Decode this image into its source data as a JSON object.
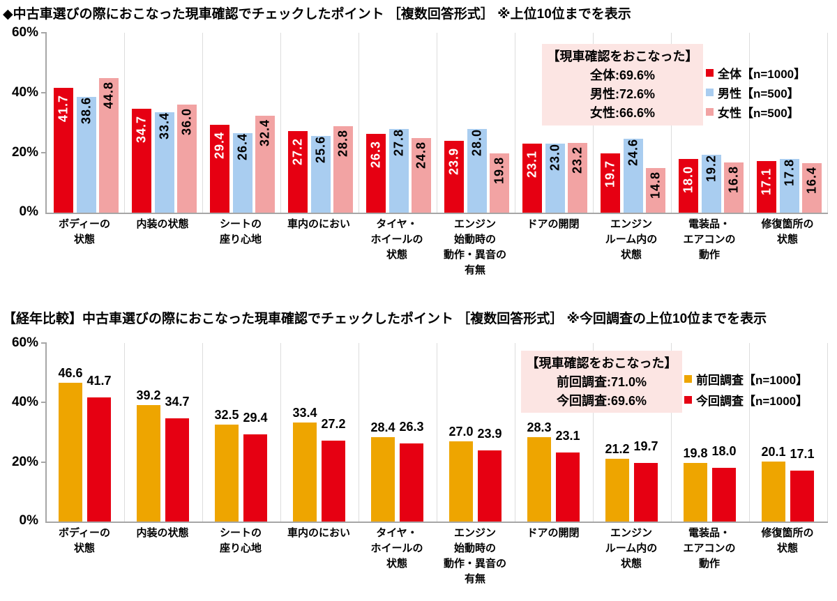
{
  "styles": {
    "note_bg": "#fce5e3",
    "axis_color": "#a6a6a6",
    "separator_color": "#dcdcdc",
    "red": "#e60012",
    "light_blue": "#a9cdf0",
    "pink": "#f2a3a3",
    "gold": "#eea500"
  },
  "chart_data": [
    {
      "type": "bar",
      "title": "◆中古車選びの際におこなった現車確認でチェックしたポイント ［複数回答形式］ ※上位10位までを表示",
      "ylim": [
        0,
        60
      ],
      "yticks": [
        "60%",
        "40%",
        "20%",
        "0%"
      ],
      "grid": false,
      "legend_position": "top-right",
      "value_label_style": "vertical",
      "categories": [
        "ボディーの\n状態",
        "内装の状態",
        "シートの\n座り心地",
        "車内のにおい",
        "タイヤ・\nホイールの\n状態",
        "エンジン\n始動時の\n動作・異音の\n有無",
        "ドアの開閉",
        "エンジン\nルーム内の\n状態",
        "電装品・\nエアコンの\n動作",
        "修復箇所の\n状態"
      ],
      "series": [
        {
          "name": "全体【n=1000】",
          "color": "#e60012",
          "values": [
            41.7,
            34.7,
            29.4,
            27.2,
            26.3,
            23.9,
            23.1,
            19.7,
            18.0,
            17.1
          ]
        },
        {
          "name": "男性【n=500】",
          "color": "#a9cdf0",
          "values": [
            38.6,
            33.4,
            26.4,
            25.6,
            27.8,
            28.0,
            23.0,
            24.6,
            19.2,
            17.8
          ]
        },
        {
          "name": "女性【n=500】",
          "color": "#f2a3a3",
          "values": [
            44.8,
            36.0,
            32.4,
            28.8,
            24.8,
            19.8,
            23.2,
            14.8,
            16.8,
            16.4
          ]
        }
      ],
      "annotation": {
        "heading": "【現車確認をおこなった】",
        "lines": [
          "全体:69.6%",
          "男性:72.6%",
          "女性:66.6%"
        ]
      }
    },
    {
      "type": "bar",
      "title": "【経年比較】中古車選びの際におこなった現車確認でチェックしたポイント ［複数回答形式］ ※今回調査の上位10位までを表示",
      "ylim": [
        0,
        60
      ],
      "yticks": [
        "60%",
        "40%",
        "20%",
        "0%"
      ],
      "grid": false,
      "legend_position": "top-right",
      "value_label_style": "horizontal-above",
      "categories": [
        "ボディーの\n状態",
        "内装の状態",
        "シートの\n座り心地",
        "車内のにおい",
        "タイヤ・\nホイールの\n状態",
        "エンジン\n始動時の\n動作・異音の\n有無",
        "ドアの開閉",
        "エンジン\nルーム内の\n状態",
        "電装品・\nエアコンの\n動作",
        "修復箇所の\n状態"
      ],
      "series": [
        {
          "name": "前回調査【n=1000】",
          "color": "#eea500",
          "values": [
            46.6,
            39.2,
            32.5,
            33.4,
            28.4,
            27.0,
            28.3,
            21.2,
            19.8,
            20.1
          ]
        },
        {
          "name": "今回調査【n=1000】",
          "color": "#e60012",
          "values": [
            41.7,
            34.7,
            29.4,
            27.2,
            26.3,
            23.9,
            23.1,
            19.7,
            18.0,
            17.1
          ]
        }
      ],
      "annotation": {
        "heading": "【現車確認をおこなった】",
        "lines": [
          "前回調査:71.0%",
          "今回調査:69.6%"
        ]
      }
    }
  ]
}
